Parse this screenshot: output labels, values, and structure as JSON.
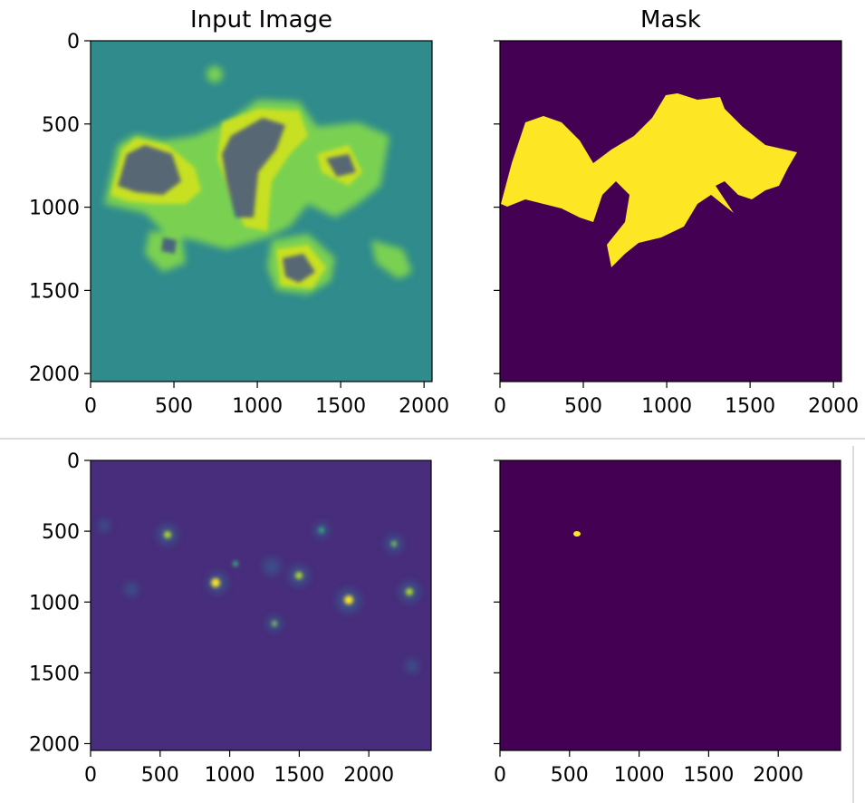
{
  "chart_data": [
    {
      "type": "image",
      "title": "Input Image",
      "xlim": [
        0,
        2048
      ],
      "ylim": [
        2048,
        0
      ],
      "xticks": [
        0,
        500,
        1000,
        1500,
        2000
      ],
      "yticks": [
        0,
        500,
        1000,
        1500,
        2000
      ],
      "ytick_labels": true
    },
    {
      "type": "image",
      "title": "Mask",
      "xlim": [
        0,
        2048
      ],
      "ylim": [
        2048,
        0
      ],
      "xticks": [
        0,
        500,
        1000,
        1500,
        2000
      ],
      "yticks": [
        0,
        500,
        1000,
        1500,
        2000
      ],
      "ytick_labels": false
    },
    {
      "type": "image",
      "xlim": [
        0,
        2448
      ],
      "ylim": [
        2048,
        0
      ],
      "xticks": [
        0,
        500,
        1000,
        1500,
        2000
      ],
      "yticks": [
        0,
        500,
        1000,
        1500,
        2000
      ],
      "ytick_labels": true
    },
    {
      "type": "image",
      "xlim": [
        0,
        2448
      ],
      "ylim": [
        2048,
        0
      ],
      "xticks": [
        0,
        500,
        1000,
        1500,
        2000
      ],
      "yticks": [
        0,
        500,
        1000,
        1500,
        2000
      ],
      "ytick_labels": false
    }
  ]
}
